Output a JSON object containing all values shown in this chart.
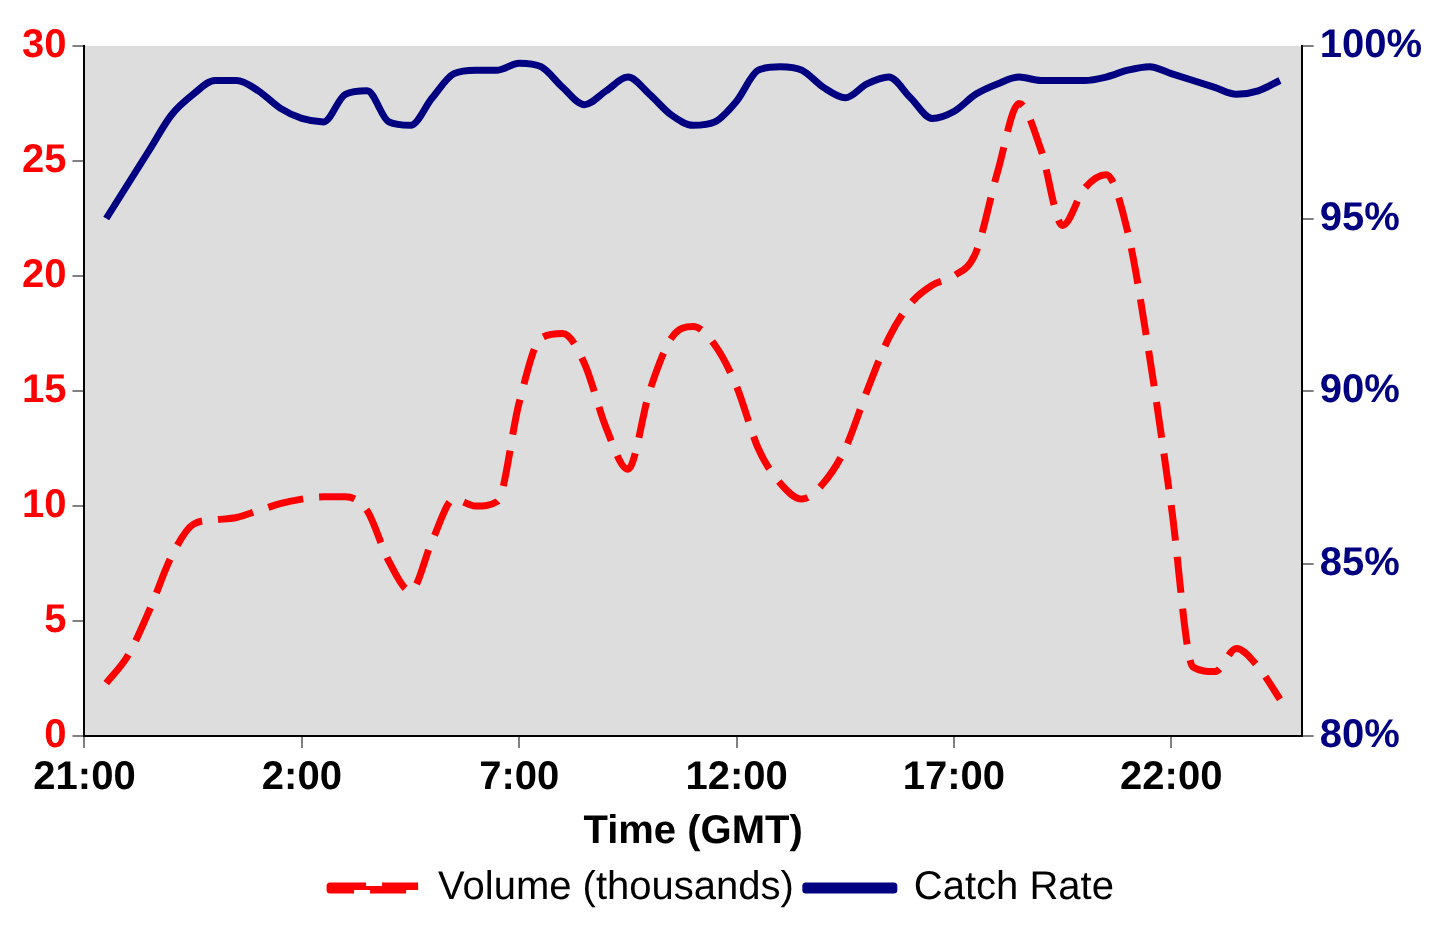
{
  "chart_data": {
    "type": "line",
    "xlabel": "Time (GMT)",
    "categories": [
      "21:00",
      null,
      null,
      null,
      null,
      null,
      null,
      null,
      null,
      null,
      "2:00",
      null,
      null,
      null,
      null,
      null,
      null,
      null,
      null,
      null,
      "7:00",
      null,
      null,
      null,
      null,
      null,
      null,
      null,
      null,
      null,
      "12:00",
      null,
      null,
      null,
      null,
      null,
      null,
      null,
      null,
      null,
      "17:00",
      null,
      null,
      null,
      null,
      null,
      null,
      null,
      null,
      null,
      "22:00",
      null,
      null,
      null,
      null,
      null,
      null
    ],
    "ylim": [
      0,
      30
    ],
    "yticks": [
      0,
      5,
      10,
      15,
      20,
      25,
      30
    ],
    "y2lim": [
      80,
      100
    ],
    "y2ticks": [
      {
        "value": 80,
        "label": "80%"
      },
      {
        "value": 85,
        "label": "85%"
      },
      {
        "value": 90,
        "label": "90%"
      },
      {
        "value": 95,
        "label": "95%"
      },
      {
        "value": 100,
        "label": "100%"
      }
    ],
    "legend": "bottom",
    "marker": "none",
    "series": [
      {
        "name": "Volume (thousands)",
        "color": "#ff0000",
        "line_style": "dashed",
        "values": [
          null,
          2.3,
          3.5,
          5.5,
          7.8,
          9.2,
          9.4,
          9.5,
          9.8,
          10.1,
          10.3,
          10.4,
          10.4,
          9.8,
          7.6,
          6.3,
          8.5,
          10.3,
          10.0,
          10.2,
          14.5,
          17.3,
          17.5,
          16.2,
          13.4,
          11.6,
          15.0,
          17.3,
          17.8,
          17.0,
          15.2,
          12.5,
          11.0,
          10.3,
          11.0,
          12.5,
          15.0,
          17.3,
          18.8,
          19.6,
          20.0,
          21.0,
          24.5,
          27.5,
          25.5,
          22.2,
          23.8,
          24.4,
          21.9,
          16.5,
          10.0,
          3.0,
          2.8,
          3.8,
          3.0,
          1.6,
          null
        ]
      },
      {
        "name": "Catch Rate",
        "color": "#000080",
        "line_style": "solid",
        "axis": "y2",
        "values": [
          null,
          95.0,
          96.0,
          97.0,
          98.0,
          98.6,
          99.0,
          99.0,
          98.7,
          98.2,
          97.9,
          97.8,
          98.6,
          98.7,
          97.8,
          97.7,
          98.5,
          99.2,
          99.3,
          99.3,
          99.5,
          99.4,
          98.8,
          98.3,
          98.7,
          99.1,
          98.6,
          98.0,
          97.7,
          97.8,
          98.4,
          99.3,
          99.4,
          99.3,
          98.8,
          98.5,
          98.9,
          99.1,
          98.5,
          97.9,
          98.1,
          98.6,
          98.9,
          99.1,
          99.0,
          99.0,
          99.0,
          99.1,
          99.3,
          99.4,
          99.2,
          99.0,
          98.8,
          98.6,
          98.7,
          99.0,
          null
        ]
      }
    ]
  }
}
